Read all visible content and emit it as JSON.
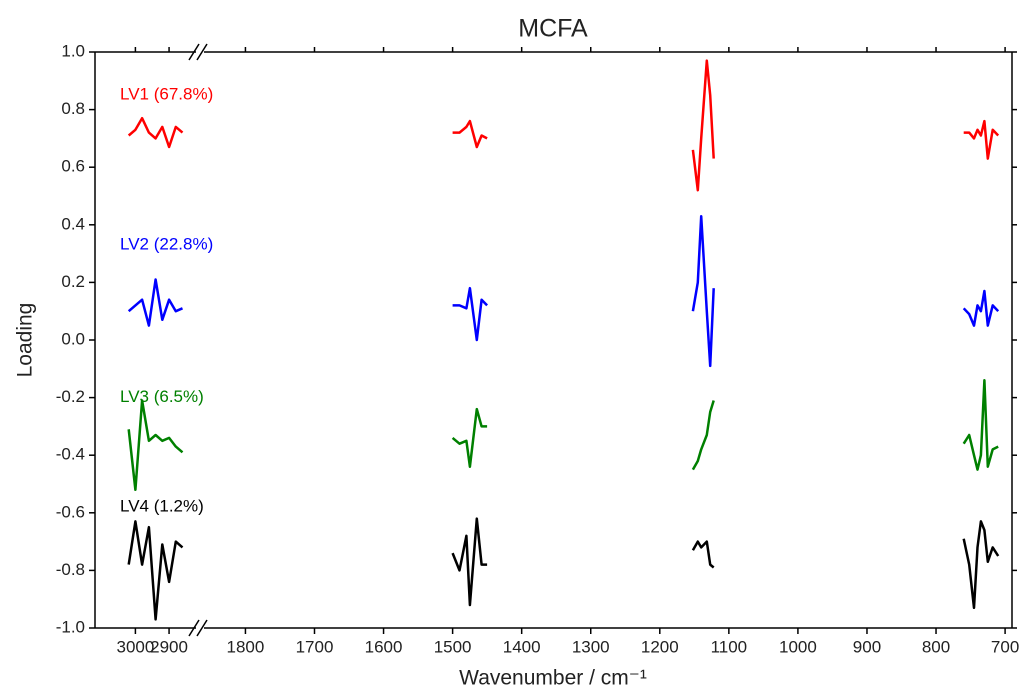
{
  "chart_data": {
    "type": "line",
    "title": "MCFA",
    "x_label": "Wavenumber / cm⁻¹",
    "y_label": "Loading",
    "xlim": [
      3120,
      690
    ],
    "xbreak": [
      2820,
      1860
    ],
    "xticks": [
      3000,
      2900,
      1800,
      1700,
      1600,
      1500,
      1400,
      1300,
      1200,
      1100,
      1000,
      900,
      800,
      700
    ],
    "ylim": [
      -1.0,
      1.0
    ],
    "yticks": [
      {
        "value": -1.0,
        "label": "-1.0"
      },
      {
        "value": -0.8,
        "label": "-0.8"
      },
      {
        "value": -0.6,
        "label": "-0.6"
      },
      {
        "value": -0.4,
        "label": "-0.4"
      },
      {
        "value": -0.2,
        "label": "-0.2"
      },
      {
        "value": 0.0,
        "label": "0.0"
      },
      {
        "value": 0.2,
        "label": "0.2"
      },
      {
        "value": 0.4,
        "label": "0.4"
      },
      {
        "value": 0.6,
        "label": "0.6"
      },
      {
        "value": 0.8,
        "label": "0.8"
      },
      {
        "value": 1.0,
        "label": "1.0"
      }
    ],
    "x": [
      3020,
      3000,
      2980,
      2960,
      2940,
      2920,
      2900,
      2880,
      2860,
      1500,
      1490,
      1480,
      1475,
      1465,
      1458,
      1450,
      1152,
      1145,
      1140,
      1132,
      1127,
      1122,
      760,
      752,
      745,
      740,
      735,
      730,
      725,
      718,
      710
    ],
    "series": [
      {
        "name": "LV1 (67.8%)",
        "color": "#ff0000",
        "values": [
          0.71,
          0.73,
          0.77,
          0.72,
          0.7,
          0.74,
          0.67,
          0.74,
          0.72,
          0.72,
          0.72,
          0.74,
          0.76,
          0.67,
          0.71,
          0.7,
          0.66,
          0.52,
          0.7,
          0.97,
          0.85,
          0.63,
          0.72,
          0.72,
          0.7,
          0.73,
          0.71,
          0.76,
          0.63,
          0.73,
          0.71
        ]
      },
      {
        "name": "LV2 (22.8%)",
        "color": "#0000ff",
        "values": [
          0.1,
          0.12,
          0.14,
          0.05,
          0.21,
          0.07,
          0.14,
          0.1,
          0.11,
          0.12,
          0.12,
          0.11,
          0.18,
          0.0,
          0.14,
          0.12,
          0.1,
          0.2,
          0.43,
          0.1,
          -0.09,
          0.18,
          0.11,
          0.09,
          0.05,
          0.12,
          0.1,
          0.17,
          0.05,
          0.12,
          0.1
        ]
      },
      {
        "name": "LV3 (6.5%)",
        "color": "#008000",
        "values": [
          -0.31,
          -0.52,
          -0.21,
          -0.35,
          -0.33,
          -0.35,
          -0.34,
          -0.37,
          -0.39,
          -0.34,
          -0.36,
          -0.35,
          -0.44,
          -0.24,
          -0.3,
          -0.3,
          -0.45,
          -0.42,
          -0.38,
          -0.33,
          -0.25,
          -0.21,
          -0.36,
          -0.33,
          -0.4,
          -0.45,
          -0.4,
          -0.14,
          -0.44,
          -0.38,
          -0.37
        ]
      },
      {
        "name": "LV4 (1.2%)",
        "color": "#000000",
        "values": [
          -0.78,
          -0.63,
          -0.78,
          -0.65,
          -0.97,
          -0.71,
          -0.84,
          -0.7,
          -0.72,
          -0.74,
          -0.8,
          -0.68,
          -0.92,
          -0.62,
          -0.78,
          -0.78,
          -0.73,
          -0.7,
          -0.72,
          -0.7,
          -0.78,
          -0.79,
          -0.69,
          -0.78,
          -0.93,
          -0.72,
          -0.63,
          -0.66,
          -0.77,
          -0.72,
          -0.75
        ]
      }
    ]
  }
}
